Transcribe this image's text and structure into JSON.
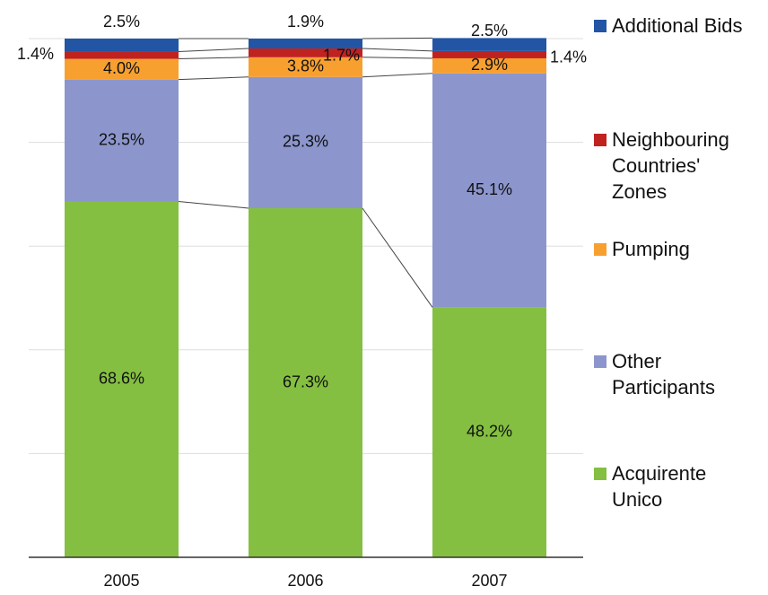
{
  "chart_data": {
    "type": "stacked_bar_percent",
    "categories": [
      "2005",
      "2006",
      "2007"
    ],
    "series": [
      {
        "name": "Acquirente Unico",
        "color": "#84bf41",
        "values": [
          68.6,
          67.3,
          48.2
        ],
        "value_labels": [
          "68.6%",
          "67.3%",
          "48.2%"
        ]
      },
      {
        "name": "Other Participants",
        "color": "#8c96cc",
        "values": [
          23.5,
          25.3,
          45.1
        ],
        "value_labels": [
          "23.5%",
          "25.3%",
          "45.1%"
        ]
      },
      {
        "name": "Pumping",
        "color": "#f7a030",
        "values": [
          4.0,
          3.8,
          2.9
        ],
        "value_labels": [
          "4.0%",
          "3.8%",
          "2.9%"
        ]
      },
      {
        "name": "Neighbouring Countries' Zones",
        "color": "#c0221f",
        "values": [
          1.4,
          1.7,
          1.4
        ],
        "value_labels": [
          "1.4%",
          "1.7%",
          "1.4%"
        ]
      },
      {
        "name": "Additional Bids",
        "color": "#2255a4",
        "values": [
          2.5,
          1.9,
          2.5
        ],
        "value_labels": [
          "2.5%",
          "1.9%",
          "2.5%"
        ]
      }
    ],
    "ylim": [
      0,
      100
    ],
    "yticks": [
      0,
      20,
      40,
      60,
      80,
      100
    ],
    "grid": true
  }
}
